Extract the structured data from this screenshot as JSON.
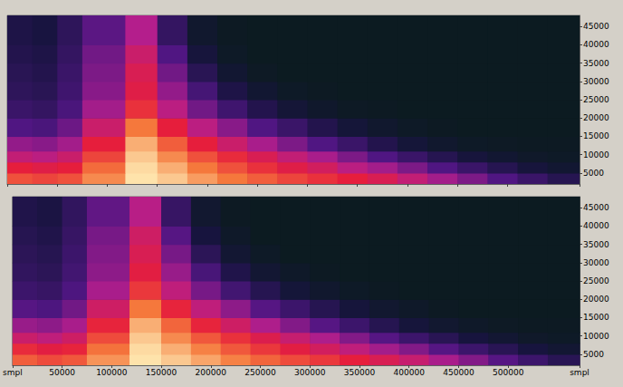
{
  "chart_data": [
    {
      "type": "heatmap",
      "x_edges": [
        0,
        25000,
        50000,
        75000,
        118000,
        150000,
        180000,
        210000,
        240000,
        270000,
        300000,
        330000,
        360000,
        390000,
        420000,
        450000,
        480000,
        510000,
        540000,
        572000
      ],
      "y_edges": [
        2000,
        5000,
        8000,
        11000,
        15000,
        20000,
        25000,
        30000,
        35000,
        40000,
        48000
      ],
      "cells": [
        [
          80,
          78,
          80,
          88,
          98,
          95,
          90,
          86,
          82,
          78,
          75,
          72,
          68,
          62,
          55,
          48,
          40,
          32,
          25
        ],
        [
          72,
          70,
          72,
          84,
          97,
          92,
          86,
          80,
          75,
          70,
          66,
          60,
          55,
          48,
          40,
          32,
          25,
          18,
          12
        ],
        [
          62,
          60,
          64,
          78,
          95,
          88,
          80,
          74,
          68,
          62,
          56,
          48,
          40,
          32,
          25,
          18,
          12,
          8,
          6
        ],
        [
          52,
          50,
          55,
          72,
          92,
          82,
          72,
          64,
          56,
          48,
          40,
          32,
          24,
          16,
          10,
          6,
          5,
          4,
          4
        ],
        [
          40,
          38,
          45,
          64,
          86,
          72,
          60,
          50,
          40,
          32,
          24,
          16,
          10,
          6,
          4,
          3,
          3,
          3,
          3
        ],
        [
          32,
          30,
          38,
          55,
          75,
          60,
          46,
          34,
          24,
          15,
          9,
          5,
          4,
          3,
          3,
          3,
          3,
          3,
          3
        ],
        [
          28,
          26,
          34,
          50,
          70,
          52,
          36,
          22,
          12,
          6,
          4,
          3,
          3,
          3,
          3,
          3,
          3,
          3,
          3
        ],
        [
          26,
          24,
          32,
          48,
          68,
          46,
          26,
          12,
          5,
          3,
          3,
          3,
          3,
          3,
          3,
          3,
          3,
          3,
          3
        ],
        [
          24,
          22,
          30,
          46,
          64,
          40,
          18,
          6,
          3,
          3,
          3,
          3,
          3,
          3,
          3,
          3,
          3,
          3,
          3
        ],
        [
          22,
          20,
          28,
          42,
          58,
          30,
          10,
          4,
          3,
          3,
          3,
          3,
          3,
          3,
          3,
          3,
          3,
          3,
          3
        ]
      ],
      "value_range": [
        0,
        100
      ],
      "xlim": [
        0,
        572000
      ],
      "ylim": [
        2000,
        48000
      ],
      "xticks": [
        {
          "value": 0,
          "label": "smpl"
        },
        50000,
        100000,
        150000,
        200000,
        250000,
        300000,
        350000,
        400000,
        450000,
        500000,
        {
          "value": 572000,
          "label": "smpl"
        }
      ],
      "yticks": [
        5000,
        10000,
        15000,
        20000,
        25000,
        30000,
        35000,
        40000,
        45000
      ],
      "tick_labels": "y"
    },
    {
      "type": "heatmap",
      "x_edges": [
        0,
        25000,
        50000,
        75000,
        118000,
        150000,
        180000,
        210000,
        240000,
        270000,
        300000,
        330000,
        360000,
        390000,
        420000,
        450000,
        480000,
        510000,
        540000,
        572000
      ],
      "y_edges": [
        2000,
        5000,
        8000,
        11000,
        15000,
        20000,
        25000,
        30000,
        35000,
        40000,
        48000
      ],
      "cells": [
        [
          82,
          79,
          81,
          89,
          98,
          95,
          91,
          87,
          83,
          79,
          76,
          72,
          68,
          63,
          56,
          49,
          41,
          33,
          26
        ],
        [
          74,
          71,
          73,
          85,
          97,
          92,
          87,
          81,
          76,
          71,
          66,
          61,
          55,
          49,
          41,
          33,
          26,
          19,
          13
        ],
        [
          64,
          61,
          65,
          79,
          95,
          88,
          81,
          75,
          69,
          63,
          57,
          49,
          41,
          33,
          26,
          19,
          13,
          8,
          6
        ],
        [
          53,
          51,
          56,
          73,
          92,
          83,
          73,
          65,
          57,
          49,
          41,
          33,
          25,
          17,
          11,
          7,
          5,
          4,
          4
        ],
        [
          41,
          39,
          46,
          65,
          86,
          73,
          61,
          51,
          41,
          33,
          25,
          17,
          11,
          7,
          4,
          3,
          3,
          3,
          3
        ],
        [
          33,
          31,
          39,
          56,
          76,
          61,
          47,
          35,
          25,
          16,
          10,
          6,
          4,
          3,
          3,
          3,
          3,
          3,
          3
        ],
        [
          29,
          27,
          35,
          51,
          71,
          53,
          37,
          23,
          13,
          7,
          4,
          3,
          3,
          3,
          3,
          3,
          3,
          3,
          3
        ],
        [
          27,
          25,
          33,
          49,
          68,
          47,
          27,
          13,
          6,
          3,
          3,
          3,
          3,
          3,
          3,
          3,
          3,
          3,
          3
        ],
        [
          25,
          23,
          31,
          47,
          65,
          41,
          19,
          7,
          3,
          3,
          3,
          3,
          3,
          3,
          3,
          3,
          3,
          3,
          3
        ],
        [
          23,
          21,
          29,
          43,
          59,
          31,
          11,
          4,
          3,
          3,
          3,
          3,
          3,
          3,
          3,
          3,
          3,
          3,
          3
        ]
      ],
      "value_range": [
        0,
        100
      ],
      "xlim": [
        0,
        572000
      ],
      "ylim": [
        2000,
        48000
      ],
      "xticks": [
        {
          "value": 0,
          "label": "smpl"
        },
        50000,
        100000,
        150000,
        200000,
        250000,
        300000,
        350000,
        400000,
        450000,
        500000,
        {
          "value": 572000,
          "label": "smpl"
        }
      ],
      "yticks": [
        5000,
        10000,
        15000,
        20000,
        25000,
        30000,
        35000,
        40000,
        45000
      ],
      "tick_labels": true
    }
  ]
}
